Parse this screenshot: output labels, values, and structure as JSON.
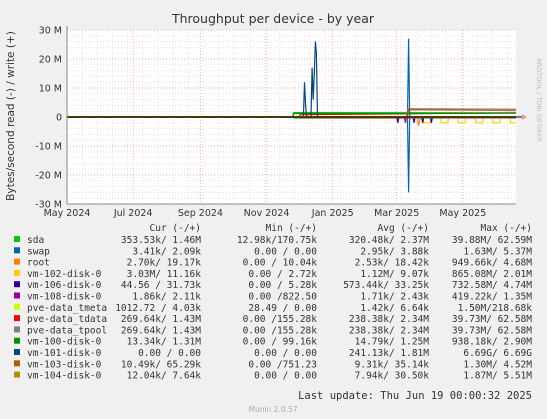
{
  "chart_data": {
    "type": "line",
    "title": "Throughput per device - by year",
    "ylabel": "Bytes/second read (-) / write (+)",
    "watermark": "RRDTOOL / TOBI OETIKER",
    "ylim": [
      -30000000,
      30000000
    ],
    "yticks": [
      {
        "value": 30000000,
        "label": "30 M"
      },
      {
        "value": 20000000,
        "label": "20 M"
      },
      {
        "value": 10000000,
        "label": "10 M"
      },
      {
        "value": 0,
        "label": "0"
      },
      {
        "value": -10000000,
        "label": "-10 M"
      },
      {
        "value": -20000000,
        "label": "-20 M"
      },
      {
        "value": -30000000,
        "label": "-30 M"
      }
    ],
    "xlim": [
      "2024-05-01",
      "2025-06-19"
    ],
    "xticks": [
      {
        "date": "2024-05-01",
        "label": "May 2024"
      },
      {
        "date": "2024-07-01",
        "label": "Jul 2024"
      },
      {
        "date": "2024-09-01",
        "label": "Sep 2024"
      },
      {
        "date": "2024-11-01",
        "label": "Nov 2024"
      },
      {
        "date": "2025-01-01",
        "label": "Jan 2025"
      },
      {
        "date": "2025-03-01",
        "label": "Mar 2025"
      },
      {
        "date": "2025-05-01",
        "label": "May 2025"
      }
    ],
    "grid": true,
    "columns": [
      "Cur (-/+)",
      "Min (-/+)",
      "Avg (-/+)",
      "Max (-/+)"
    ],
    "series": [
      {
        "name": "sda",
        "color": "#00cc00",
        "cur": "353.53k/  1.46M",
        "min": "12.98k/170.75k",
        "avg": "320.48k/  2.37M",
        "max": "39.88M/ 62.59M",
        "points": [
          [
            "2024-05-01",
            0,
            0
          ],
          [
            "2024-11-25",
            0,
            0
          ],
          [
            "2024-11-26",
            -350000,
            1500000
          ],
          [
            "2025-06-19",
            -350000,
            1460000
          ]
        ]
      },
      {
        "name": "swap",
        "color": "#0066b3",
        "cur": "3.41k/  2.09k",
        "min": "0.00 /  0.00",
        "avg": "2.95k/  3.88k",
        "max": "1.63M/  5.37M",
        "points": [
          [
            "2024-05-01",
            0,
            0
          ],
          [
            "2025-03-11",
            0,
            0
          ],
          [
            "2025-03-12",
            -26000000,
            27000000
          ],
          [
            "2025-03-13",
            0,
            0
          ],
          [
            "2025-06-19",
            0,
            0
          ]
        ]
      },
      {
        "name": "root",
        "color": "#ff8000",
        "cur": "2.70k/ 19.17k",
        "min": "0.00 / 10.04k",
        "avg": "2.53k/ 18.42k",
        "max": "949.66k/  4.68M",
        "points": [
          [
            "2024-05-01",
            0,
            0
          ],
          [
            "2025-03-20",
            0,
            0
          ],
          [
            "2025-03-21",
            -3000000,
            0
          ],
          [
            "2025-03-23",
            0,
            0
          ],
          [
            "2025-06-19",
            0,
            0
          ]
        ]
      },
      {
        "name": "vm-102-disk-0",
        "color": "#ffcc00",
        "cur": "3.03M/ 11.16k",
        "min": "0.00 /  2.72k",
        "avg": "1.12M/  9.07k",
        "max": "865.08M/  2.01M",
        "points": [
          [
            "2024-05-01",
            0,
            0
          ],
          [
            "2025-03-25",
            0,
            0
          ],
          [
            "2025-03-26",
            -2000000,
            0
          ],
          [
            "2025-04-01",
            -2000000,
            0
          ],
          [
            "2025-04-02",
            0,
            0
          ],
          [
            "2025-04-10",
            0,
            0
          ],
          [
            "2025-04-11",
            -2000000,
            0
          ],
          [
            "2025-04-17",
            -2000000,
            0
          ],
          [
            "2025-04-18",
            0,
            0
          ],
          [
            "2025-04-26",
            0,
            0
          ],
          [
            "2025-04-27",
            -2000000,
            0
          ],
          [
            "2025-05-03",
            -2000000,
            0
          ],
          [
            "2025-05-04",
            0,
            0
          ],
          [
            "2025-05-12",
            0,
            0
          ],
          [
            "2025-05-13",
            -2000000,
            0
          ],
          [
            "2025-05-19",
            -2000000,
            0
          ],
          [
            "2025-05-20",
            0,
            0
          ],
          [
            "2025-05-28",
            0,
            0
          ],
          [
            "2025-05-29",
            -2000000,
            0
          ],
          [
            "2025-06-04",
            -2000000,
            0
          ],
          [
            "2025-06-05",
            0,
            0
          ],
          [
            "2025-06-13",
            0,
            0
          ],
          [
            "2025-06-14",
            -2000000,
            0
          ],
          [
            "2025-06-19",
            -2000000,
            0
          ]
        ]
      },
      {
        "name": "vm-106-disk-0",
        "color": "#330099",
        "cur": "44.56 / 31.73k",
        "min": "0.00 /  5.28k",
        "avg": "573.44k/ 33.25k",
        "max": "732.58M/  4.74M",
        "points": [
          [
            "2024-05-01",
            0,
            0
          ],
          [
            "2025-03-01",
            0,
            0
          ],
          [
            "2025-03-02",
            -2000000,
            0
          ],
          [
            "2025-03-03",
            0,
            0
          ],
          [
            "2025-03-16",
            0,
            0
          ],
          [
            "2025-03-17",
            -2000000,
            0
          ],
          [
            "2025-03-18",
            0,
            0
          ],
          [
            "2025-03-24",
            0,
            0
          ],
          [
            "2025-03-25",
            -2000000,
            0
          ],
          [
            "2025-03-26",
            0,
            0
          ],
          [
            "2025-04-01",
            0,
            0
          ],
          [
            "2025-04-02",
            -2000000,
            0
          ],
          [
            "2025-04-03",
            0,
            0
          ],
          [
            "2025-06-19",
            0,
            0
          ]
        ]
      },
      {
        "name": "vm-108-disk-0",
        "color": "#990099",
        "cur": "1.86k/  2.11k",
        "min": "0.00 /822.50",
        "avg": "1.71k/  2.43k",
        "max": "419.22k/  1.35M",
        "points": [
          [
            "2024-05-01",
            0,
            0
          ],
          [
            "2025-03-08",
            0,
            0
          ],
          [
            "2025-03-09",
            -2000000,
            0
          ],
          [
            "2025-03-10",
            0,
            0
          ],
          [
            "2025-06-19",
            0,
            0
          ]
        ]
      },
      {
        "name": "pve-data_tmeta",
        "color": "#ccff00",
        "cur": "1012.72 /  4.03k",
        "min": "28.49 /  0.00",
        "avg": "1.42k/  6.64k",
        "max": "1.50M/218.68k",
        "points": [
          [
            "2024-05-01",
            0,
            0
          ],
          [
            "2025-06-19",
            0,
            0
          ]
        ]
      },
      {
        "name": "pve-data_tdata",
        "color": "#ff0000",
        "cur": "269.64k/  1.43M",
        "min": "0.00 /155.28k",
        "avg": "238.38k/  2.34M",
        "max": "39.73M/ 62.58M",
        "points": [
          [
            "2024-05-01",
            0,
            0
          ],
          [
            "2024-12-01",
            0,
            0
          ],
          [
            "2024-12-02",
            -250000,
            800000
          ],
          [
            "2025-06-19",
            -270000,
            1430000
          ]
        ]
      },
      {
        "name": "pve-data_tpool",
        "color": "#808080",
        "cur": "269.64k/  1.43M",
        "min": "0.00 /155.28k",
        "avg": "238.38k/  2.34M",
        "max": "39.73M/ 62.58M",
        "points": [
          [
            "2024-05-01",
            0,
            0
          ],
          [
            "2025-03-10",
            0,
            0
          ],
          [
            "2025-03-11",
            -250000,
            2500000
          ],
          [
            "2025-06-19",
            -270000,
            2200000
          ]
        ]
      },
      {
        "name": "vm-100-disk-0",
        "color": "#008f00",
        "cur": "13.34k/  1.31M",
        "min": "0.00 / 99.16k",
        "avg": "14.79k/  1.25M",
        "max": "938.18k/  2.90M",
        "points": [
          [
            "2024-05-01",
            0,
            0
          ],
          [
            "2024-11-25",
            0,
            0
          ],
          [
            "2024-11-26",
            0,
            1200000
          ],
          [
            "2025-06-19",
            0,
            1310000
          ]
        ]
      },
      {
        "name": "vm-101-disk-0",
        "color": "#00487d",
        "cur": "0.00 /  0.00",
        "min": "0.00 /  0.00",
        "avg": "241.13k/  1.81M",
        "max": "6.69G/  6.69G",
        "points": [
          [
            "2024-05-01",
            0,
            0
          ],
          [
            "2024-12-05",
            0,
            0
          ],
          [
            "2024-12-06",
            0,
            12000000
          ],
          [
            "2024-12-07",
            0,
            4000000
          ],
          [
            "2024-12-08",
            0,
            0
          ],
          [
            "2024-12-12",
            0,
            0
          ],
          [
            "2024-12-13",
            0,
            17000000
          ],
          [
            "2024-12-14",
            0,
            6000000
          ],
          [
            "2024-12-15",
            0,
            15000000
          ],
          [
            "2024-12-16",
            0,
            26000000
          ],
          [
            "2024-12-17",
            0,
            22000000
          ],
          [
            "2024-12-18",
            0,
            0
          ],
          [
            "2025-06-19",
            0,
            0
          ]
        ]
      },
      {
        "name": "vm-103-disk-0",
        "color": "#b35a00",
        "cur": "10.49k/ 65.29k",
        "min": "0.00 /751.23",
        "avg": "9.31k/ 35.14k",
        "max": "1.30M/  4.52M",
        "points": [
          [
            "2024-05-01",
            0,
            0
          ],
          [
            "2025-03-11",
            0,
            0
          ],
          [
            "2025-03-12",
            0,
            2800000
          ],
          [
            "2025-06-19",
            0,
            2700000
          ]
        ]
      },
      {
        "name": "vm-104-disk-0",
        "color": "#b38f00",
        "cur": "12.04k/  7.64k",
        "min": "0.00 /  0.00",
        "avg": "7.94k/ 30.50k",
        "max": "1.87M/  5.51M",
        "points": [
          [
            "2024-05-01",
            0,
            0
          ],
          [
            "2025-06-19",
            0,
            0
          ]
        ]
      }
    ]
  },
  "footer": {
    "last_update": "Last update: Thu Jun 19 00:00:32 2025",
    "version": "Munin 2.0.57"
  }
}
